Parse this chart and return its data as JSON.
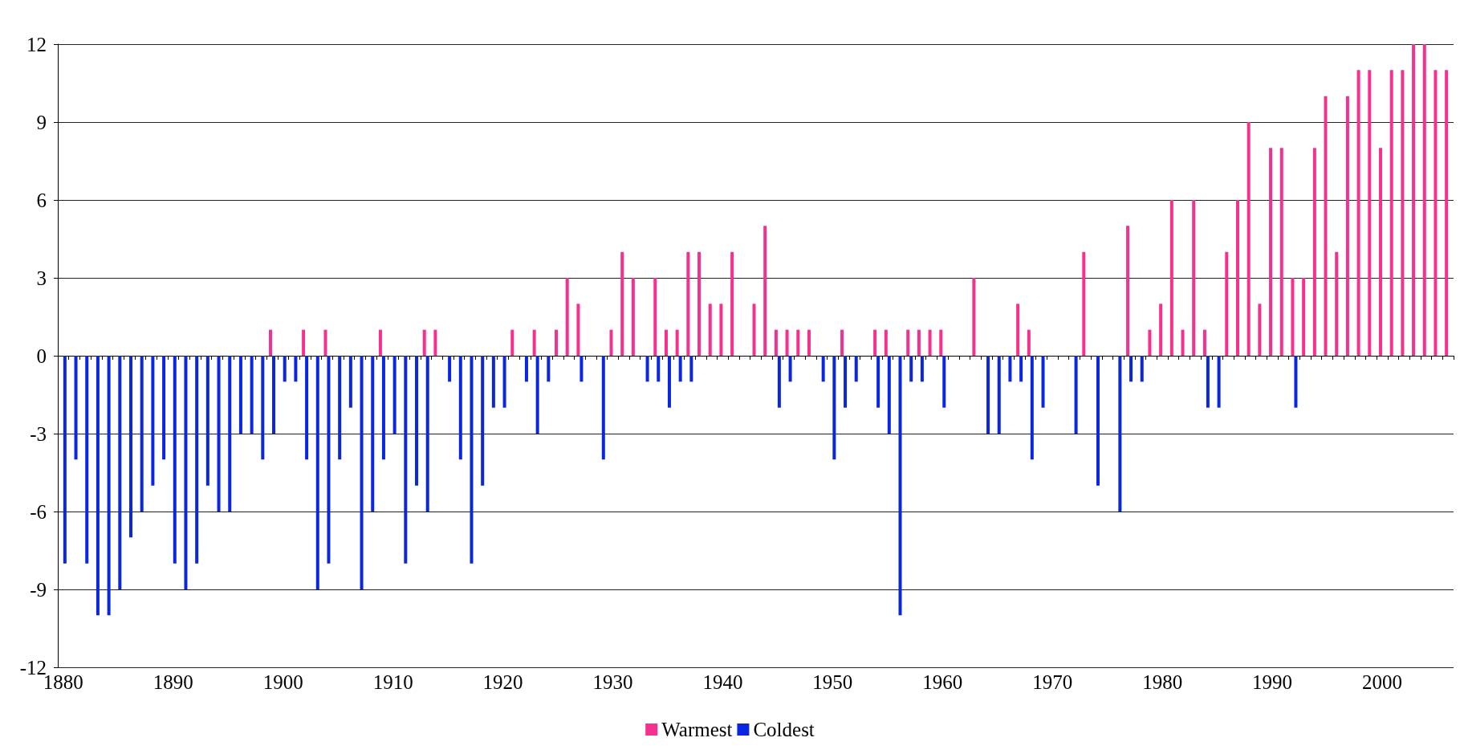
{
  "chart_data": {
    "type": "bar",
    "categories": [
      "1880",
      null,
      null,
      null,
      null,
      null,
      null,
      null,
      null,
      null,
      "1890",
      null,
      null,
      null,
      null,
      null,
      null,
      null,
      null,
      null,
      "1900",
      null,
      null,
      null,
      null,
      null,
      null,
      null,
      null,
      null,
      "1910",
      null,
      null,
      null,
      null,
      null,
      null,
      null,
      null,
      null,
      "1920",
      null,
      null,
      null,
      null,
      null,
      null,
      null,
      null,
      null,
      "1930",
      null,
      null,
      null,
      null,
      null,
      null,
      null,
      null,
      null,
      "1940",
      null,
      null,
      null,
      null,
      null,
      null,
      null,
      null,
      null,
      "1950",
      null,
      null,
      null,
      null,
      null,
      null,
      null,
      null,
      null,
      "1960",
      null,
      null,
      null,
      null,
      null,
      null,
      null,
      null,
      null,
      "1970",
      null,
      null,
      null,
      null,
      null,
      null,
      null,
      null,
      null,
      "1980",
      null,
      null,
      null,
      null,
      null,
      null,
      null,
      null,
      null,
      "1990",
      null,
      null,
      null,
      null,
      null,
      null,
      null,
      null,
      null,
      "2000",
      null,
      null,
      null,
      null,
      null,
      null
    ],
    "series": [
      {
        "name": "Warmest",
        "color": "#f5308e",
        "values": [
          null,
          null,
          null,
          null,
          null,
          null,
          null,
          null,
          null,
          null,
          null,
          null,
          null,
          null,
          null,
          null,
          null,
          null,
          null,
          1,
          null,
          null,
          1,
          null,
          1,
          null,
          null,
          null,
          null,
          1,
          null,
          null,
          null,
          1,
          1,
          null,
          null,
          null,
          null,
          null,
          null,
          1,
          null,
          1,
          null,
          1,
          3,
          2,
          null,
          null,
          1,
          4,
          3,
          null,
          3,
          1,
          1,
          4,
          4,
          2,
          2,
          4,
          null,
          2,
          5,
          1,
          1,
          1,
          1,
          null,
          null,
          1,
          null,
          null,
          1,
          1,
          null,
          1,
          1,
          1,
          1,
          null,
          null,
          3,
          null,
          null,
          null,
          2,
          1,
          null,
          null,
          null,
          null,
          4,
          null,
          null,
          null,
          5,
          null,
          1,
          2,
          6,
          1,
          6,
          1,
          null,
          4,
          6,
          9,
          2,
          8,
          8,
          3,
          3,
          8,
          10,
          4,
          10,
          11,
          11,
          8,
          11,
          11,
          12,
          12,
          11,
          11
        ]
      },
      {
        "name": "Coldest",
        "color": "#0a26e0",
        "values": [
          -8,
          -4,
          -8,
          -10,
          -10,
          -9,
          -7,
          -6,
          -5,
          -4,
          -8,
          -9,
          -8,
          -5,
          -6,
          -6,
          -3,
          -3,
          -4,
          -3,
          -1,
          -1,
          -4,
          -9,
          -8,
          -4,
          -2,
          -9,
          -6,
          -4,
          -3,
          -8,
          -5,
          -6,
          null,
          -1,
          -4,
          -8,
          -5,
          -2,
          -2,
          null,
          -1,
          -3,
          -1,
          null,
          null,
          -1,
          null,
          -4,
          null,
          null,
          null,
          -1,
          -1,
          -2,
          -1,
          -1,
          null,
          null,
          null,
          null,
          null,
          null,
          null,
          -2,
          -1,
          null,
          null,
          -1,
          -4,
          -2,
          -1,
          null,
          -2,
          -3,
          -10,
          -1,
          -1,
          null,
          -2,
          null,
          null,
          null,
          -3,
          -3,
          -1,
          -1,
          -4,
          -2,
          null,
          null,
          -3,
          null,
          -5,
          null,
          -6,
          -1,
          -1,
          null,
          null,
          null,
          null,
          null,
          -2,
          -2,
          null,
          null,
          null,
          null,
          null,
          null,
          -2,
          null,
          null,
          null,
          null,
          null,
          null,
          null,
          null,
          null,
          null,
          null,
          null,
          null,
          null
        ]
      }
    ],
    "ylim": [
      -12,
      12
    ],
    "yticks": [
      -12,
      -9,
      -6,
      -3,
      0,
      3,
      6,
      9,
      12
    ],
    "grid": "y",
    "legend": "bottom"
  }
}
